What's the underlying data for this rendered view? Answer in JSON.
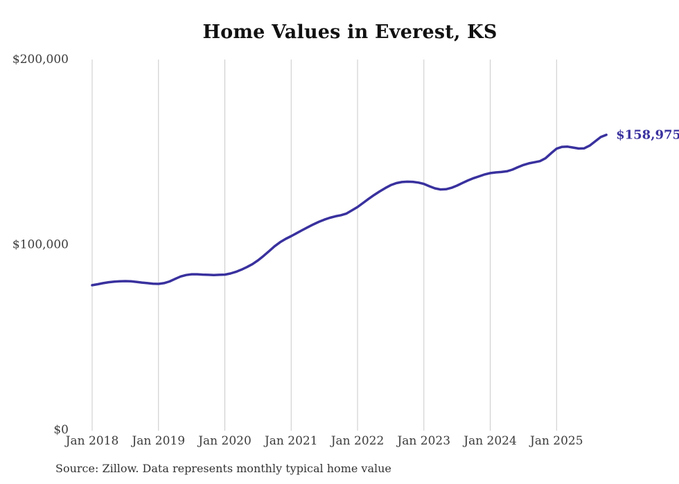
{
  "page": {
    "background": "#ffffff"
  },
  "chart_data": {
    "type": "line",
    "title": "Home Values in Everest, KS",
    "source_note": "Source: Zillow. Data represents monthly typical home value",
    "series_name": "Monthly typical home value",
    "start_month": "2018-01",
    "end_month": "2025-10",
    "x_tick_labels": [
      "Jan 2018",
      "Jan 2019",
      "Jan 2020",
      "Jan 2021",
      "Jan 2022",
      "Jan 2023",
      "Jan 2024",
      "Jan 2025"
    ],
    "x_tick_month_indices": [
      0,
      12,
      24,
      36,
      48,
      60,
      72,
      84
    ],
    "y_ticks": [
      {
        "value": 0,
        "label": "$0"
      },
      {
        "value": 100000,
        "label": "$100,000"
      },
      {
        "value": 200000,
        "label": "$200,000"
      }
    ],
    "ylim": [
      0,
      200000
    ],
    "grid": "vertical-only",
    "legend": "none",
    "end_label": "$158,975",
    "end_value": 158975,
    "line_color": "#39319e",
    "gridline_color": "#c9c9c9",
    "tick_text_color": "#3c3c3c",
    "values": [
      77800,
      78300,
      78900,
      79400,
      79700,
      79900,
      80000,
      79900,
      79600,
      79200,
      78900,
      78600,
      78500,
      78900,
      79800,
      81200,
      82500,
      83300,
      83700,
      83700,
      83500,
      83400,
      83300,
      83400,
      83500,
      84100,
      85000,
      86200,
      87600,
      89200,
      91200,
      93600,
      96200,
      98800,
      101000,
      102800,
      104300,
      105900,
      107500,
      109100,
      110600,
      112000,
      113200,
      114200,
      115000,
      115600,
      116500,
      118200,
      120000,
      122200,
      124400,
      126500,
      128400,
      130200,
      131800,
      132900,
      133500,
      133700,
      133600,
      133200,
      132500,
      131200,
      130100,
      129500,
      129600,
      130400,
      131600,
      133000,
      134400,
      135600,
      136600,
      137600,
      138300,
      138700,
      138900,
      139300,
      140200,
      141500,
      142700,
      143600,
      144200,
      144800,
      146300,
      149000,
      151500,
      152500,
      152600,
      152100,
      151600,
      151700,
      153200,
      155500,
      157800,
      158975
    ]
  }
}
